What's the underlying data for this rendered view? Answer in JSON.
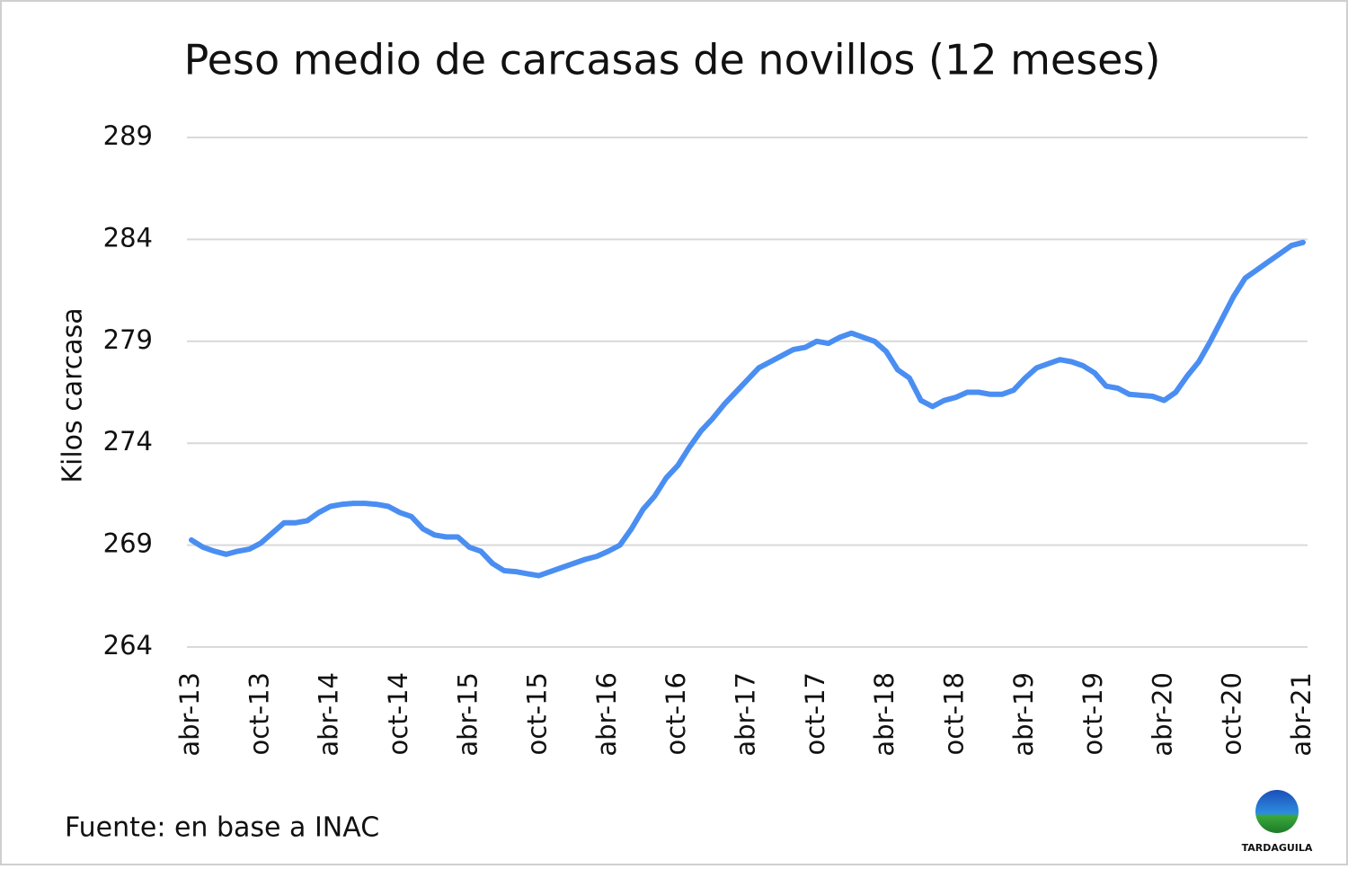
{
  "chart_data": {
    "type": "line",
    "title": "Peso medio de carcasas de novillos (12 meses)",
    "y_label": "Kilos carcasa",
    "source": "Fuente:  en base a INAC",
    "logo_text": "TARDAGUILA",
    "categories": [
      "abr-13",
      null,
      null,
      null,
      null,
      null,
      "oct-13",
      null,
      null,
      null,
      null,
      null,
      "abr-14",
      null,
      null,
      null,
      null,
      null,
      "oct-14",
      null,
      null,
      null,
      null,
      null,
      "abr-15",
      null,
      null,
      null,
      null,
      null,
      "oct-15",
      null,
      null,
      null,
      null,
      null,
      "abr-16",
      null,
      null,
      null,
      null,
      null,
      "oct-16",
      null,
      null,
      null,
      null,
      null,
      "abr-17",
      null,
      null,
      null,
      null,
      null,
      "oct-17",
      null,
      null,
      null,
      null,
      null,
      "abr-18",
      null,
      null,
      null,
      null,
      null,
      "oct-18",
      null,
      null,
      null,
      null,
      null,
      "abr-19",
      null,
      null,
      null,
      null,
      null,
      "oct-19",
      null,
      null,
      null,
      null,
      null,
      "abr-20",
      null,
      null,
      null,
      null,
      null,
      "oct-20",
      null,
      null,
      null,
      null,
      null,
      "abr-21"
    ],
    "series": [
      {
        "name": "Kilos carcasa",
        "color": "#4a8ef2",
        "values": [
          269.25,
          268.9,
          268.7,
          268.55,
          268.7,
          268.8,
          269.1,
          269.6,
          270.1,
          270.1,
          270.2,
          270.6,
          270.9,
          271.0,
          271.05,
          271.05,
          271.0,
          270.9,
          270.6,
          270.4,
          269.8,
          269.5,
          269.4,
          269.4,
          268.9,
          268.7,
          268.1,
          267.75,
          267.7,
          267.6,
          267.5,
          267.7,
          267.9,
          268.1,
          268.3,
          268.45,
          268.7,
          269.0,
          269.8,
          270.75,
          271.4,
          272.3,
          272.9,
          273.8,
          274.6,
          275.2,
          275.9,
          276.5,
          277.1,
          277.7,
          278.0,
          278.3,
          278.6,
          278.7,
          279.0,
          278.9,
          279.2,
          279.4,
          279.2,
          279.0,
          278.5,
          277.6,
          277.2,
          276.1,
          275.8,
          276.1,
          276.25,
          276.5,
          276.5,
          276.4,
          276.4,
          276.6,
          277.2,
          277.7,
          277.9,
          278.1,
          278.0,
          277.8,
          277.45,
          276.8,
          276.7,
          276.4,
          276.35,
          276.3,
          276.1,
          276.5,
          277.3,
          278.0,
          279.0,
          280.1,
          281.2,
          282.1,
          282.5,
          282.9,
          283.3,
          283.7,
          283.85
        ]
      }
    ],
    "ylim": [
      264,
      289
    ],
    "yticks": [
      264,
      269,
      274,
      279,
      284,
      289
    ],
    "grid": true
  }
}
